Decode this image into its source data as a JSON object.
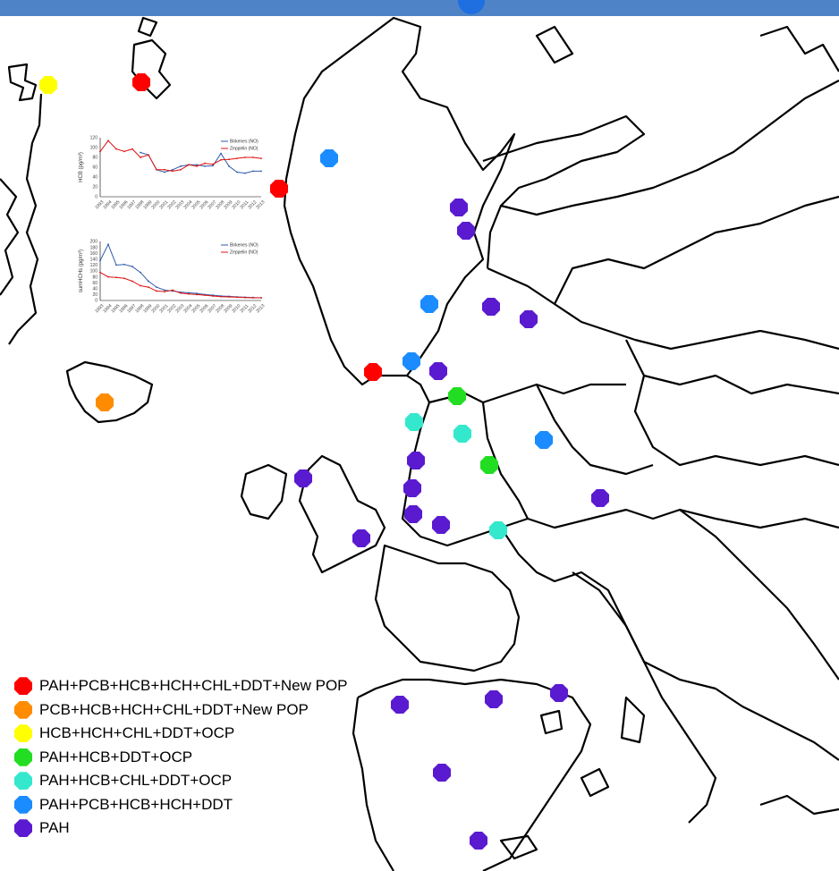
{
  "colors": {
    "red": "#ff0000",
    "orange": "#ff8c00",
    "yellow": "#ffff00",
    "green": "#22dd22",
    "cyan": "#33e8cc",
    "blue": "#1a8cff",
    "purple": "#5a1ad0",
    "line_blue": "#2e5aa8",
    "line_red": "#e01010"
  },
  "legend": [
    {
      "label": "PAH+PCB+HCB+HCH+CHL+DDT+New POP",
      "color": "#ff0000"
    },
    {
      "label": "PCB+HCB+HCH+CHL+DDT+New POP",
      "color": "#ff8c00"
    },
    {
      "label": "HCB+HCH+CHL+DDT+OCP",
      "color": "#ffff00"
    },
    {
      "label": "PAH+HCB+DDT+OCP",
      "color": "#22dd22"
    },
    {
      "label": "PAH+HCB+CHL+DDT+OCP",
      "color": "#33e8cc"
    },
    {
      "label": "PAH+PCB+HCB+HCH+DDT",
      "color": "#1a8cff"
    },
    {
      "label": "PAH",
      "color": "#5a1ad0"
    }
  ],
  "chart_data": [
    {
      "type": "line",
      "ylabel": "HCB (pg/m³)",
      "ylim": [
        0,
        120
      ],
      "yticks": [
        0,
        20,
        40,
        60,
        80,
        100,
        120
      ],
      "x": [
        "1993",
        "1994",
        "1995",
        "1996",
        "1997",
        "1998",
        "1999",
        "2000",
        "2001",
        "2002",
        "2003",
        "2004",
        "2005",
        "2006",
        "2007",
        "2008",
        "2009",
        "2010",
        "2011",
        "2012",
        "2013"
      ],
      "series": [
        {
          "name": "Birkenes (NO)",
          "color": "#2e5aa8",
          "values": [
            null,
            null,
            null,
            null,
            null,
            90,
            85,
            55,
            50,
            55,
            62,
            65,
            65,
            62,
            63,
            88,
            62,
            50,
            48,
            52,
            52
          ]
        },
        {
          "name": "Zeppelin (NO)",
          "color": "#e01010",
          "values": [
            92,
            114,
            97,
            92,
            97,
            80,
            85,
            55,
            55,
            52,
            55,
            65,
            62,
            68,
            66,
            75,
            76,
            78,
            80,
            80,
            78
          ]
        }
      ]
    },
    {
      "type": "line",
      "ylabel": "sumHCHs (pg/m³)",
      "ylim": [
        0,
        200
      ],
      "yticks": [
        0,
        20,
        40,
        60,
        80,
        100,
        120,
        140,
        160,
        180,
        200
      ],
      "x": [
        "1993",
        "1994",
        "1995",
        "1996",
        "1997",
        "1998",
        "1999",
        "2000",
        "2001",
        "2002",
        "2003",
        "2004",
        "2005",
        "2006",
        "2007",
        "2008",
        "2009",
        "2010",
        "2011",
        "2012",
        "2013"
      ],
      "series": [
        {
          "name": "Birkenes (NO)",
          "color": "#2e5aa8",
          "values": [
            135,
            190,
            120,
            122,
            115,
            95,
            65,
            45,
            35,
            32,
            28,
            26,
            24,
            20,
            18,
            15,
            14,
            12,
            11,
            10,
            9
          ]
        },
        {
          "name": "Zeppelin (NO)",
          "color": "#e01010",
          "values": [
            95,
            80,
            78,
            75,
            65,
            50,
            45,
            32,
            30,
            35,
            25,
            22,
            20,
            18,
            15,
            13,
            12,
            11,
            10,
            9,
            9
          ]
        }
      ]
    }
  ],
  "stations": [
    {
      "x": 54,
      "y": 95,
      "color": "#ffff00"
    },
    {
      "x": 158,
      "y": 92,
      "color": "#ff0000"
    },
    {
      "x": 312,
      "y": 211,
      "color": "#ff0000"
    },
    {
      "x": 368,
      "y": 177,
      "color": "#1a8cff"
    },
    {
      "x": 117,
      "y": 450,
      "color": "#ff8c00"
    },
    {
      "x": 513,
      "y": 232,
      "color": "#5a1ad0"
    },
    {
      "x": 521,
      "y": 258,
      "color": "#5a1ad0"
    },
    {
      "x": 480,
      "y": 340,
      "color": "#1a8cff"
    },
    {
      "x": 549,
      "y": 343,
      "color": "#5a1ad0"
    },
    {
      "x": 591,
      "y": 357,
      "color": "#5a1ad0"
    },
    {
      "x": 417,
      "y": 416,
      "color": "#ff0000"
    },
    {
      "x": 460,
      "y": 404,
      "color": "#1a8cff"
    },
    {
      "x": 490,
      "y": 415,
      "color": "#5a1ad0"
    },
    {
      "x": 511,
      "y": 443,
      "color": "#22dd22"
    },
    {
      "x": 463,
      "y": 472,
      "color": "#33e8cc"
    },
    {
      "x": 517,
      "y": 485,
      "color": "#33e8cc"
    },
    {
      "x": 608,
      "y": 492,
      "color": "#1a8cff"
    },
    {
      "x": 465,
      "y": 515,
      "color": "#5a1ad0"
    },
    {
      "x": 547,
      "y": 520,
      "color": "#22dd22"
    },
    {
      "x": 339,
      "y": 535,
      "color": "#5a1ad0"
    },
    {
      "x": 461,
      "y": 546,
      "color": "#5a1ad0"
    },
    {
      "x": 462,
      "y": 575,
      "color": "#5a1ad0"
    },
    {
      "x": 493,
      "y": 587,
      "color": "#5a1ad0"
    },
    {
      "x": 557,
      "y": 593,
      "color": "#33e8cc"
    },
    {
      "x": 671,
      "y": 557,
      "color": "#5a1ad0"
    },
    {
      "x": 404,
      "y": 602,
      "color": "#5a1ad0"
    },
    {
      "x": 447,
      "y": 788,
      "color": "#5a1ad0"
    },
    {
      "x": 552,
      "y": 782,
      "color": "#5a1ad0"
    },
    {
      "x": 625,
      "y": 775,
      "color": "#5a1ad0"
    },
    {
      "x": 494,
      "y": 864,
      "color": "#5a1ad0"
    },
    {
      "x": 535,
      "y": 940,
      "color": "#5a1ad0"
    }
  ]
}
